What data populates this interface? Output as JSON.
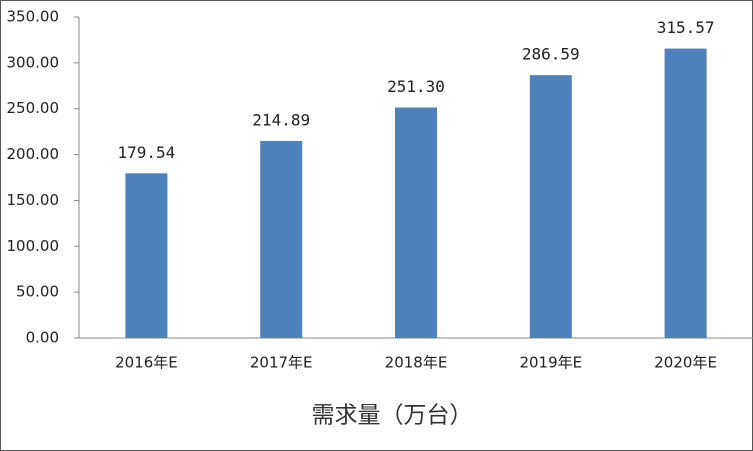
{
  "chart_data": {
    "type": "bar",
    "title": "需求量（万台）",
    "categories": [
      "2016年E",
      "2017年E",
      "2018年E",
      "2019年E",
      "2020年E"
    ],
    "values": [
      179.54,
      214.89,
      251.3,
      286.59,
      315.57
    ],
    "value_labels": [
      "179.54",
      "214.89",
      "251.30",
      "286.59",
      "315.57"
    ],
    "color": "#4f81bd",
    "ylim": [
      0,
      350
    ],
    "yticks": [
      {
        "value": 0,
        "label": "0.00"
      },
      {
        "value": 50,
        "label": "50.00"
      },
      {
        "value": 100,
        "label": "100.00"
      },
      {
        "value": 150,
        "label": "150.00"
      },
      {
        "value": 200,
        "label": "200.00"
      },
      {
        "value": 250,
        "label": "250.00"
      },
      {
        "value": 300,
        "label": "300.00"
      },
      {
        "value": 350,
        "label": "350.00"
      }
    ],
    "grid": false
  }
}
